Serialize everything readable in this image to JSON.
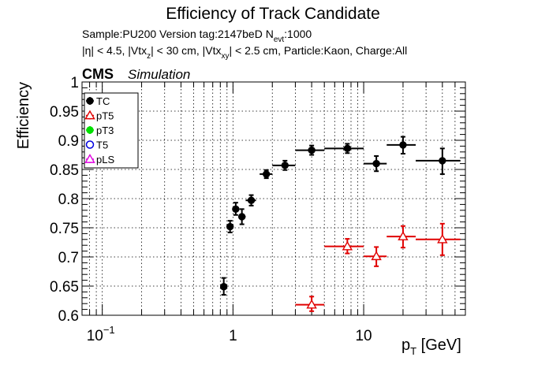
{
  "chart_data": {
    "type": "scatter",
    "title": "Efficiency of Track Candidate",
    "subtitle_line1_parts": [
      "Sample:PU200   Version tag:2147beD  N",
      "evt",
      ":1000"
    ],
    "subtitle_line2_parts": [
      "|η| < 4.5, |Vtx",
      "z",
      "| < 30 cm, |Vtx",
      "xy",
      "| < 2.5 cm, Particle:Kaon, Charge:All"
    ],
    "cms_label": "CMS",
    "simulation_label": "Simulation",
    "ylabel": "Efficiency",
    "xlabel_parts": [
      "p",
      "T",
      " [GeV]"
    ],
    "x_scale": "log",
    "xlim": [
      0.07,
      60
    ],
    "ylim": [
      0.6,
      1.0
    ],
    "grid": true,
    "legend_placement": "top-left",
    "y_ticks": [
      "0.6",
      "0.65",
      "0.7",
      "0.75",
      "0.8",
      "0.85",
      "0.9",
      "0.95",
      "1"
    ],
    "x_ticks": [
      {
        "base": "10",
        "exp": "−1"
      },
      {
        "base": "1",
        "exp": ""
      },
      {
        "base": "10",
        "exp": ""
      }
    ],
    "series": [
      {
        "name": "TC",
        "color": "#000000",
        "marker": "circle-filled",
        "points": [
          {
            "x": 0.85,
            "xlo": 0.8,
            "xhi": 0.9,
            "y": 0.649,
            "ylo": 0.635,
            "yhi": 0.664
          },
          {
            "x": 0.95,
            "xlo": 0.9,
            "xhi": 1.0,
            "y": 0.752,
            "ylo": 0.742,
            "yhi": 0.762
          },
          {
            "x": 1.05,
            "xlo": 1.0,
            "xhi": 1.1,
            "y": 0.782,
            "ylo": 0.772,
            "yhi": 0.793
          },
          {
            "x": 1.17,
            "xlo": 1.1,
            "xhi": 1.25,
            "y": 0.769,
            "ylo": 0.756,
            "yhi": 0.782
          },
          {
            "x": 1.38,
            "xlo": 1.25,
            "xhi": 1.5,
            "y": 0.797,
            "ylo": 0.788,
            "yhi": 0.806
          },
          {
            "x": 1.8,
            "xlo": 1.6,
            "xhi": 2.0,
            "y": 0.842,
            "ylo": 0.835,
            "yhi": 0.849
          },
          {
            "x": 2.5,
            "xlo": 2.0,
            "xhi": 3.0,
            "y": 0.857,
            "ylo": 0.849,
            "yhi": 0.865
          },
          {
            "x": 4.0,
            "xlo": 3.0,
            "xhi": 5.0,
            "y": 0.883,
            "ylo": 0.875,
            "yhi": 0.891
          },
          {
            "x": 7.5,
            "xlo": 5.0,
            "xhi": 10.0,
            "y": 0.886,
            "ylo": 0.878,
            "yhi": 0.894
          },
          {
            "x": 12.5,
            "xlo": 10.0,
            "xhi": 15.0,
            "y": 0.86,
            "ylo": 0.847,
            "yhi": 0.873
          },
          {
            "x": 20.0,
            "xlo": 15.0,
            "xhi": 25.0,
            "y": 0.892,
            "ylo": 0.877,
            "yhi": 0.906
          },
          {
            "x": 40.0,
            "xlo": 25.0,
            "xhi": 55.0,
            "y": 0.865,
            "ylo": 0.842,
            "yhi": 0.886
          }
        ]
      },
      {
        "name": "pT5",
        "color": "#e00000",
        "marker": "triangle-open",
        "points": [
          {
            "x": 4.0,
            "xlo": 3.0,
            "xhi": 5.0,
            "y": 0.618,
            "ylo": 0.607,
            "yhi": 0.632
          },
          {
            "x": 7.5,
            "xlo": 5.0,
            "xhi": 10.0,
            "y": 0.718,
            "ylo": 0.706,
            "yhi": 0.731
          },
          {
            "x": 12.5,
            "xlo": 10.0,
            "xhi": 15.0,
            "y": 0.701,
            "ylo": 0.684,
            "yhi": 0.717
          },
          {
            "x": 20.0,
            "xlo": 15.0,
            "xhi": 25.0,
            "y": 0.735,
            "ylo": 0.716,
            "yhi": 0.753
          },
          {
            "x": 40.0,
            "xlo": 25.0,
            "xhi": 55.0,
            "y": 0.73,
            "ylo": 0.703,
            "yhi": 0.757
          }
        ]
      },
      {
        "name": "pT3",
        "color": "#00e000",
        "marker": "circle-filled",
        "points": []
      },
      {
        "name": "T5",
        "color": "#0000e0",
        "marker": "circle-open",
        "points": []
      },
      {
        "name": "pLS",
        "color": "#e000e0",
        "marker": "triangle-open",
        "points": []
      }
    ]
  }
}
